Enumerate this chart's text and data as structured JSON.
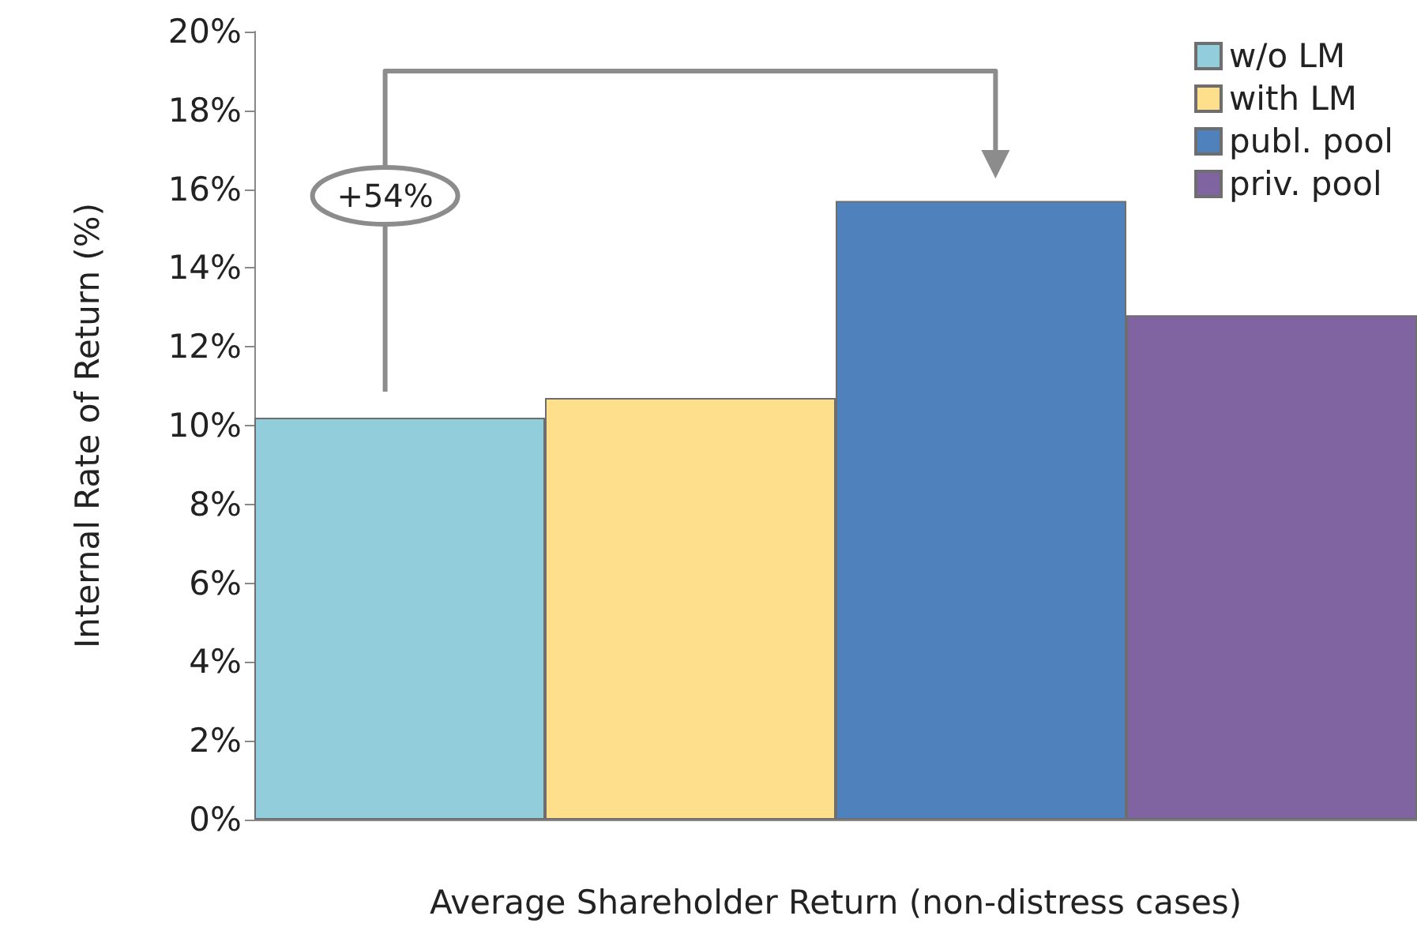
{
  "chart_data": {
    "type": "bar",
    "xlabel": "Average Shareholder Return (non-distress cases)",
    "ylabel": "Internal Rate of Return (%)",
    "categories": [
      null
    ],
    "series": [
      {
        "name": "w/o LM",
        "color": "#92cddc",
        "values": [
          10.2
        ]
      },
      {
        "name": "with LM",
        "color": "#fddf8c",
        "values": [
          10.7
        ]
      },
      {
        "name": "publ. pool",
        "color": "#4f81bd",
        "values": [
          15.7
        ]
      },
      {
        "name": "priv. pool",
        "color": "#8064a2",
        "values": [
          12.8
        ]
      }
    ],
    "ylim": [
      0,
      20
    ],
    "yticks": [
      {
        "value": 0,
        "label": "0%"
      },
      {
        "value": 2,
        "label": "2%"
      },
      {
        "value": 4,
        "label": "4%"
      },
      {
        "value": 6,
        "label": "6%"
      },
      {
        "value": 8,
        "label": "8%"
      },
      {
        "value": 10,
        "label": "10%"
      },
      {
        "value": 12,
        "label": "12%"
      },
      {
        "value": 14,
        "label": "14%"
      },
      {
        "value": 16,
        "label": "16%"
      },
      {
        "value": 18,
        "label": "18%"
      },
      {
        "value": 20,
        "label": "20%"
      }
    ],
    "legend": "top right",
    "annotations": [
      "+54%"
    ]
  }
}
